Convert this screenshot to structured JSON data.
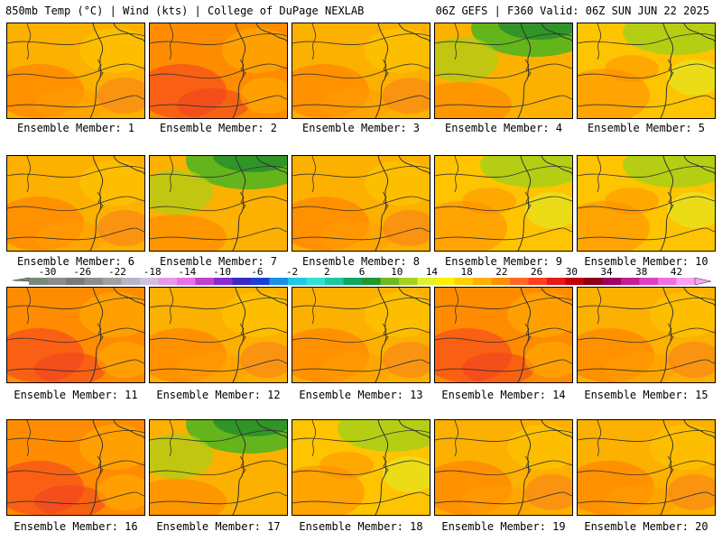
{
  "header": {
    "left": "850mb Temp (°C) | Wind (kts) | College of DuPage NEXLAB",
    "right": "06Z GEFS | F360 Valid: 06Z SUN JUN 22 2025"
  },
  "panels": [
    {
      "label": "Ensemble Member: 1",
      "scheme": "warm"
    },
    {
      "label": "Ensemble Member: 2",
      "scheme": "hot"
    },
    {
      "label": "Ensemble Member: 3",
      "scheme": "warm"
    },
    {
      "label": "Ensemble Member: 4",
      "scheme": "cool-north"
    },
    {
      "label": "Ensemble Member: 5",
      "scheme": "mixed"
    },
    {
      "label": "Ensemble Member: 6",
      "scheme": "warm"
    },
    {
      "label": "Ensemble Member: 7",
      "scheme": "cool-north"
    },
    {
      "label": "Ensemble Member: 8",
      "scheme": "warm"
    },
    {
      "label": "Ensemble Member: 9",
      "scheme": "mixed"
    },
    {
      "label": "Ensemble Member: 10",
      "scheme": "mixed"
    },
    {
      "label": "Ensemble Member: 11",
      "scheme": "hot"
    },
    {
      "label": "Ensemble Member: 12",
      "scheme": "warm"
    },
    {
      "label": "Ensemble Member: 13",
      "scheme": "warm"
    },
    {
      "label": "Ensemble Member: 14",
      "scheme": "hot"
    },
    {
      "label": "Ensemble Member: 15",
      "scheme": "warm"
    },
    {
      "label": "Ensemble Member: 16",
      "scheme": "hot"
    },
    {
      "label": "Ensemble Member: 17",
      "scheme": "cool-north"
    },
    {
      "label": "Ensemble Member: 18",
      "scheme": "mixed"
    },
    {
      "label": "Ensemble Member: 19",
      "scheme": "warm"
    },
    {
      "label": "Ensemble Member: 20",
      "scheme": "warm"
    }
  ],
  "colorbar": {
    "tick_labels": [
      "-30",
      "-26",
      "-22",
      "-18",
      "-14",
      "-10",
      "-6",
      "-2",
      "2",
      "6",
      "10",
      "14",
      "18",
      "22",
      "26",
      "30",
      "34",
      "38",
      "42"
    ],
    "colors": [
      "#7a8a7a",
      "#8c8c8c",
      "#7a7a7a",
      "#8e8e8e",
      "#a0a0a0",
      "#b5b5c5",
      "#d0c0e0",
      "#e59ae5",
      "#e870e8",
      "#c040d0",
      "#8a2ad0",
      "#3a2ac0",
      "#1a40d8",
      "#1a90e8",
      "#20c8e8",
      "#30e0d0",
      "#20c8a0",
      "#10a860",
      "#209830",
      "#70b820",
      "#a8d020",
      "#e0f030",
      "#fff000",
      "#ffd000",
      "#ffb000",
      "#ff9000",
      "#ff6820",
      "#ff4020",
      "#e81818",
      "#c00010",
      "#900018",
      "#a00060",
      "#c02090",
      "#e040c0",
      "#f070e0",
      "#fca0f0"
    ]
  },
  "schemes": {
    "warm": {
      "base": "#fcb000",
      "spots": [
        "#ff8c00",
        "#ffc400",
        "#ff9c00",
        "#f87820"
      ]
    },
    "hot": {
      "base": "#ff8c00",
      "spots": [
        "#f85818",
        "#ffa800",
        "#f04020",
        "#ffb400"
      ]
    },
    "cool-north": {
      "base": "#fcb000",
      "spots": [
        "#5cb41c",
        "#2c9428",
        "#a8d018",
        "#ff8c00"
      ]
    },
    "mixed": {
      "base": "#ffc400",
      "spots": [
        "#a8d018",
        "#ff9c00",
        "#e0ec28",
        "#ff8c00"
      ]
    }
  }
}
